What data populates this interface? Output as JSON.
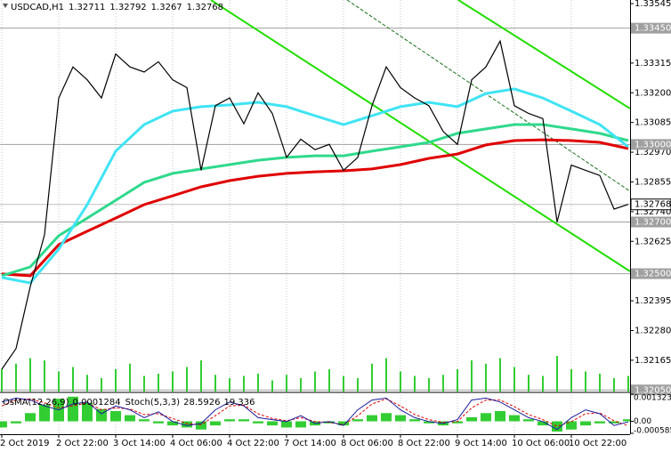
{
  "chart_data": {
    "type": "line",
    "symbol": "USDCAD,H1",
    "open": 1.32711,
    "high": 1.32792,
    "low": 1.3267,
    "close": 1.32768,
    "x": [
      0,
      4,
      8,
      12,
      16,
      20,
      24,
      28,
      32,
      36,
      40,
      44,
      48,
      52,
      56,
      60,
      64,
      68,
      72,
      76,
      80,
      84,
      88,
      92,
      96,
      100,
      104,
      108,
      112,
      116,
      120,
      124,
      128,
      132,
      136,
      140,
      144,
      148,
      152,
      156,
      160,
      164,
      168,
      172,
      176
    ],
    "xlim": [
      0,
      176.5
    ],
    "xticks": [
      {
        "value": 0,
        "label": "2 Oct 2019"
      },
      {
        "value": 16,
        "label": "2 Oct 22:00"
      },
      {
        "value": 32,
        "label": "3 Oct 14:00"
      },
      {
        "value": 48,
        "label": "4 Oct 06:00"
      },
      {
        "value": 64,
        "label": "4 Oct 22:00"
      },
      {
        "value": 80,
        "label": "7 Oct 14:00"
      },
      {
        "value": 96,
        "label": "8 Oct 06:00"
      },
      {
        "value": 112,
        "label": "8 Oct 22:00"
      },
      {
        "value": 128,
        "label": "9 Oct 14:00"
      },
      {
        "value": 144,
        "label": "10 Oct 06:00"
      },
      {
        "value": 160,
        "label": "10 Oct 22:00"
      }
    ],
    "ylim": [
      1.32044,
      1.33559
    ],
    "yticks": [
      1.33545,
      1.33315,
      {
        "value": 1.332,
        "label": "1.33200"
      },
      1.33085,
      {
        "value": 1.3297,
        "label": "1.32970"
      },
      1.32855,
      {
        "value": 1.3274,
        "label": "1.32740"
      },
      1.32625,
      1.32395,
      {
        "value": 1.3228,
        "label": "1.32280"
      },
      1.32165
    ],
    "levels": [
      {
        "value": 1.3345,
        "label": "1.33450"
      },
      {
        "value": 1.33,
        "label": "1.33000"
      },
      {
        "value": 1.327,
        "label": "1.32700"
      },
      {
        "value": 1.325,
        "label": "1.32500"
      },
      {
        "value": 1.3205,
        "label": "1.32050"
      }
    ],
    "price": [
      1.3213,
      1.3221,
      1.3245,
      1.3265,
      1.3318,
      1.333,
      1.3325,
      1.3318,
      1.3335,
      1.333,
      1.3328,
      1.3332,
      1.3325,
      1.3322,
      1.329,
      1.3315,
      1.3318,
      1.3308,
      1.332,
      1.3312,
      1.3295,
      1.3302,
      1.3298,
      1.33,
      1.329,
      1.3295,
      1.3315,
      1.333,
      1.3322,
      1.3318,
      1.3315,
      1.3305,
      1.33,
      1.3325,
      1.333,
      1.334,
      1.3315,
      1.3312,
      1.331,
      1.327,
      1.3292,
      1.329,
      1.3288,
      1.3275,
      1.32768
    ],
    "price_color": "#000000",
    "ma_x": [
      0,
      8,
      16,
      24,
      32,
      40,
      48,
      56,
      64,
      72,
      80,
      88,
      96,
      104,
      112,
      120,
      128,
      136,
      144,
      152,
      160,
      168,
      176
    ],
    "moving_averages": [
      {
        "color": "#e00000",
        "values": [
          1.32499,
          1.32492,
          1.32612,
          1.32664,
          1.32715,
          1.32767,
          1.32801,
          1.32836,
          1.3286,
          1.32877,
          1.32888,
          1.32894,
          1.32898,
          1.32905,
          1.32922,
          1.32946,
          1.32963,
          1.32998,
          1.33015,
          1.33018,
          1.33015,
          1.33008,
          1.32984
        ]
      },
      {
        "color": "#2fd98c",
        "values": [
          1.32492,
          1.32526,
          1.32647,
          1.32715,
          1.32784,
          1.32853,
          1.32888,
          1.32905,
          1.32922,
          1.32939,
          1.3295,
          1.32956,
          1.32956,
          1.32974,
          1.32991,
          1.33008,
          1.33043,
          1.3306,
          1.33077,
          1.33077,
          1.3306,
          1.33043,
          1.33015
        ]
      },
      {
        "color": "#40e4f4",
        "values": [
          1.32485,
          1.32464,
          1.32595,
          1.32767,
          1.32974,
          1.33077,
          1.33129,
          1.33146,
          1.33153,
          1.33163,
          1.33146,
          1.33111,
          1.33077,
          1.33111,
          1.33146,
          1.33163,
          1.33146,
          1.33197,
          1.33215,
          1.3318,
          1.33129,
          1.33077,
          1.32991
        ]
      }
    ],
    "volumes": [
      20,
      25,
      30,
      28,
      18,
      22,
      15,
      12,
      20,
      25,
      14,
      16,
      18,
      22,
      28,
      15,
      12,
      14,
      16,
      10,
      15,
      12,
      18,
      20,
      14,
      12,
      25,
      30,
      18,
      14,
      12,
      15,
      20,
      28,
      25,
      30,
      22,
      15,
      14,
      32,
      20,
      18,
      16,
      12,
      14
    ],
    "volume_color": "#32cd32",
    "indicators": {
      "osma_label": "OsMA(12,26,9)",
      "osma_value": 0.0001284,
      "stoch_label": "Stoch(5,3,3)",
      "stoch_main": 28.5926,
      "stoch_signal": 19.336,
      "osma": [
        -0.0003,
        -0.0001,
        0.0004,
        0.0008,
        0.0011,
        0.0012,
        0.0009,
        0.0006,
        0.0005,
        0.0003,
        0.0001,
        -0.0001,
        -0.0002,
        -0.0003,
        -0.0004,
        -0.0002,
        0.0001,
        0.0001,
        -0.0001,
        -0.0002,
        -0.0003,
        -0.0003,
        -0.0002,
        -0.0001,
        -0.0002,
        0.0001,
        0.0003,
        0.0004,
        0.0003,
        0.0001,
        -0.0001,
        -0.0002,
        -0.0001,
        0.0002,
        0.0004,
        0.0005,
        0.0003,
        0.0001,
        -0.0002,
        -0.0005,
        -0.0004,
        -0.0002,
        -0.0001,
        -0.0001,
        0.0001
      ],
      "osma_color": "#32cd32",
      "stoch_main_values": [
        80,
        90,
        85,
        70,
        60,
        75,
        80,
        50,
        70,
        60,
        40,
        55,
        30,
        20,
        25,
        60,
        80,
        70,
        40,
        35,
        30,
        45,
        25,
        30,
        20,
        60,
        85,
        90,
        60,
        40,
        30,
        25,
        35,
        85,
        90,
        80,
        60,
        40,
        30,
        10,
        40,
        60,
        50,
        20,
        29
      ],
      "stoch_signal_values": [
        70,
        85,
        88,
        78,
        65,
        70,
        78,
        60,
        65,
        62,
        48,
        50,
        38,
        25,
        22,
        45,
        70,
        72,
        50,
        38,
        32,
        40,
        30,
        28,
        22,
        45,
        75,
        88,
        70,
        48,
        35,
        28,
        30,
        65,
        85,
        85,
        68,
        48,
        35,
        18,
        30,
        50,
        52,
        32,
        19
      ],
      "stoch_main_color": "#1a1a9a",
      "stoch_signal_color": "#e00000",
      "ylim": [
        -0.000585,
        0.0013231
      ],
      "yticks": [
        0.0013231,
        {
          "value": 0,
          "label": "0.00"
        },
        -0.000585
      ],
      "stoch_ylim": [
        0,
        100
      ]
    }
  }
}
